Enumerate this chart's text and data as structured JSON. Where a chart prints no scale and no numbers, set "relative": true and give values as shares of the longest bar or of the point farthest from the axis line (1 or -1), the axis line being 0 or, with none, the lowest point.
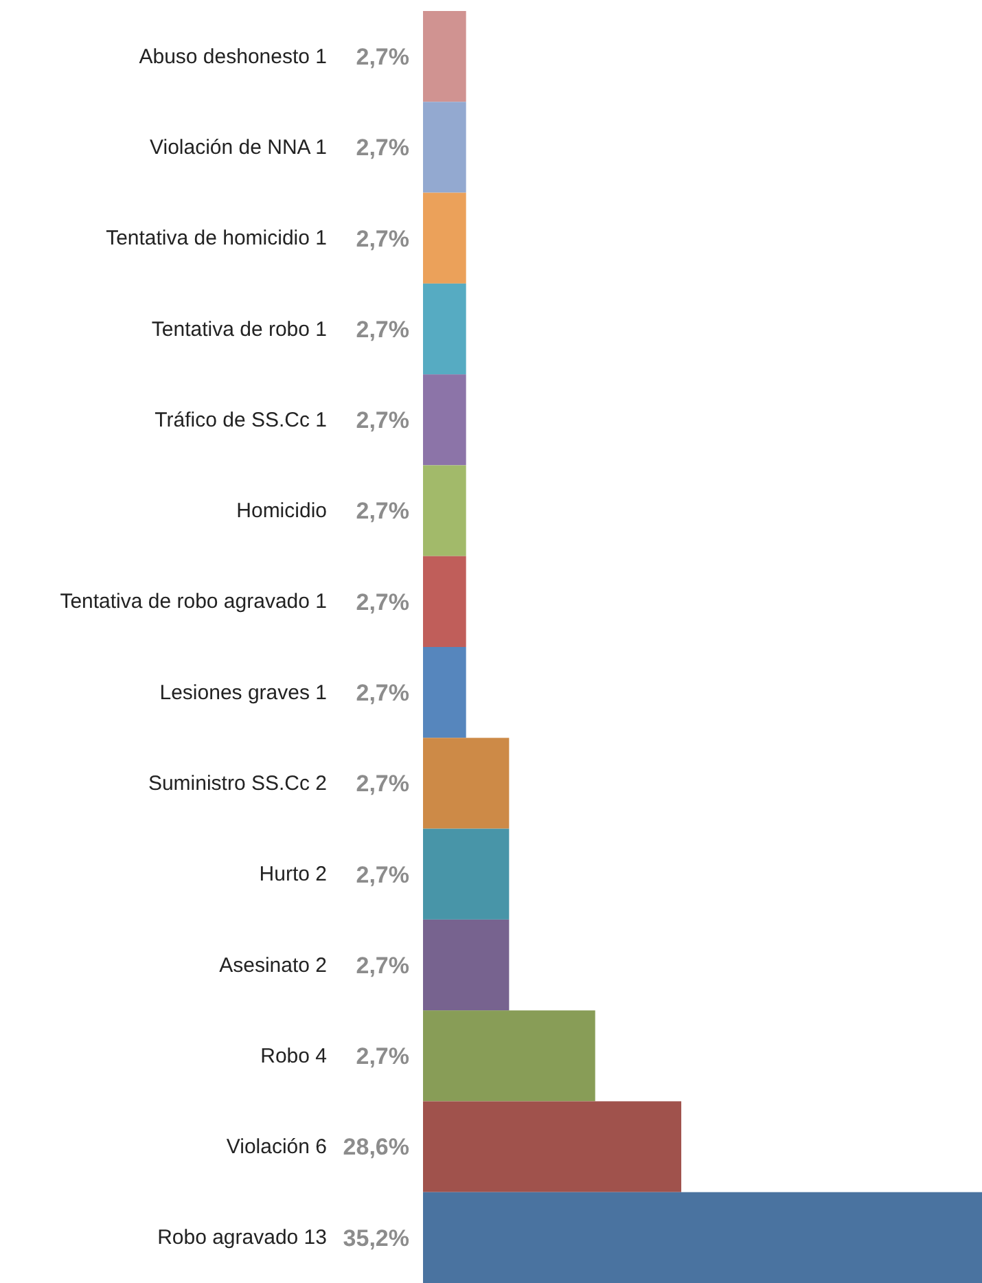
{
  "chart_data": {
    "type": "bar",
    "orientation": "horizontal",
    "relative": true,
    "categories": [
      "Abuso deshonesto 1",
      "Violación de NNA 1",
      "Tentativa de homicidio 1",
      "Tentativa de robo 1",
      "Tráfico de SS.Cc 1",
      "Homicidio",
      "Tentativa de robo agravado 1",
      "Lesiones graves 1",
      "Suministro SS.Cc 2",
      "Hurto 2",
      "Asesinato 2",
      "Robo 4",
      "Violación 6",
      "Robo agravado 13"
    ],
    "values": [
      0.077,
      0.077,
      0.077,
      0.077,
      0.077,
      0.077,
      0.077,
      0.077,
      0.154,
      0.154,
      0.154,
      0.308,
      0.462,
      1
    ],
    "colors": [
      "#d09391",
      "#93a9d0",
      "#eba15a",
      "#56abc2",
      "#8c74a8",
      "#a2ba6a",
      "#c05e5a",
      "#5686bd",
      "#cd8a47",
      "#4895a8",
      "#77638f",
      "#889d57",
      "#a0524c",
      "#4a73a0"
    ],
    "annotations": [
      "2,7%",
      "2,7%",
      "2,7%",
      "2,7%",
      "2,7%",
      "2,7%",
      "2,7%",
      "2,7%",
      "2,7%",
      "2,7%",
      "2,7%",
      "2,7%",
      "28,6%",
      "35,2%"
    ]
  }
}
